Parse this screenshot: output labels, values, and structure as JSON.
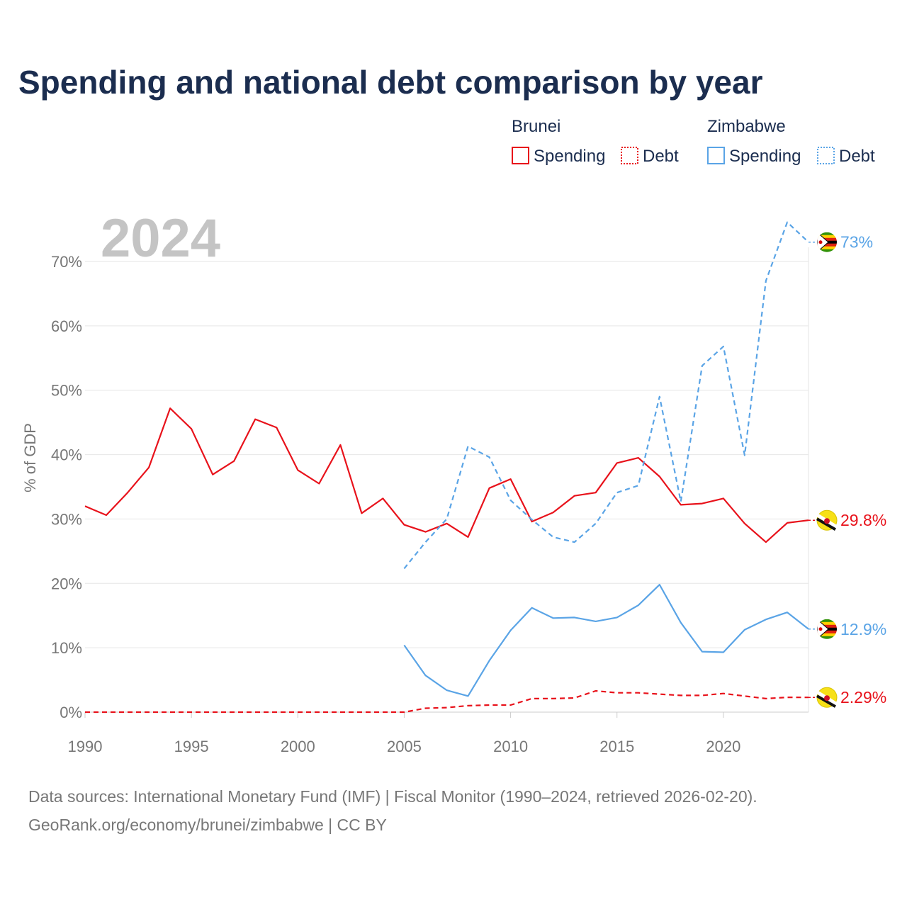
{
  "title": "Spending and national debt comparison by year",
  "year_watermark": "2024",
  "legend": {
    "countries": [
      {
        "name": "Brunei",
        "color": "#e8121b",
        "items": [
          "Spending",
          "Debt"
        ]
      },
      {
        "name": "Zimbabwe",
        "color": "#5aa4e6",
        "items": [
          "Spending",
          "Debt"
        ]
      }
    ]
  },
  "source_lines": [
    "Data sources: International Monetary Fund (IMF) | Fiscal Monitor (1990–2024, retrieved 2026-02-20).",
    "GeoRank.org/economy/brunei/zimbabwe | CC BY"
  ],
  "chart_data": {
    "type": "line",
    "title": "Spending and national debt comparison by year",
    "xlabel": "",
    "ylabel": "% of GDP",
    "xlim": [
      1990,
      2024
    ],
    "ylim": [
      0,
      75
    ],
    "x_ticks": [
      1990,
      1995,
      2000,
      2005,
      2010,
      2015,
      2020
    ],
    "y_ticks": [
      0,
      10,
      20,
      30,
      40,
      50,
      60,
      70
    ],
    "y_tick_labels": [
      "0%",
      "10%",
      "20%",
      "30%",
      "40%",
      "50%",
      "60%",
      "70%"
    ],
    "grid": true,
    "legend_position": "top-right",
    "series": [
      {
        "name": "Brunei Spending",
        "country": "Brunei",
        "kind": "Spending",
        "color": "#e8121b",
        "dash": false,
        "end_label": "29.8%",
        "x": [
          1990,
          1991,
          1992,
          1993,
          1994,
          1995,
          1996,
          1997,
          1998,
          1999,
          2000,
          2001,
          2002,
          2003,
          2004,
          2005,
          2006,
          2007,
          2008,
          2009,
          2010,
          2011,
          2012,
          2013,
          2014,
          2015,
          2016,
          2017,
          2018,
          2019,
          2020,
          2021,
          2022,
          2023,
          2024
        ],
        "values": [
          32.0,
          30.6,
          34.1,
          38.0,
          47.2,
          44.0,
          36.9,
          39.0,
          45.5,
          44.2,
          37.6,
          35.5,
          41.5,
          30.9,
          33.2,
          29.1,
          28.0,
          29.3,
          27.2,
          34.8,
          36.2,
          29.6,
          31.0,
          33.6,
          34.1,
          38.7,
          39.5,
          36.6,
          32.2,
          32.4,
          33.2,
          29.3,
          26.4,
          29.4,
          29.8
        ]
      },
      {
        "name": "Brunei Debt",
        "country": "Brunei",
        "kind": "Debt",
        "color": "#e8121b",
        "dash": true,
        "end_label": "2.29%",
        "x": [
          1990,
          1991,
          1992,
          1993,
          1994,
          1995,
          1996,
          1997,
          1998,
          1999,
          2000,
          2001,
          2002,
          2003,
          2004,
          2005,
          2006,
          2007,
          2008,
          2009,
          2010,
          2011,
          2012,
          2013,
          2014,
          2015,
          2016,
          2017,
          2018,
          2019,
          2020,
          2021,
          2022,
          2023,
          2024
        ],
        "values": [
          0,
          0,
          0,
          0,
          0,
          0,
          0,
          0,
          0,
          0,
          0,
          0,
          0,
          0,
          0,
          0,
          0.6,
          0.7,
          1.0,
          1.1,
          1.1,
          2.1,
          2.1,
          2.2,
          3.3,
          3.0,
          3.0,
          2.8,
          2.6,
          2.6,
          2.9,
          2.5,
          2.1,
          2.3,
          2.29
        ]
      },
      {
        "name": "Zimbabwe Spending",
        "country": "Zimbabwe",
        "kind": "Spending",
        "color": "#5aa4e6",
        "dash": false,
        "end_label": "12.9%",
        "x": [
          2005,
          2006,
          2007,
          2008,
          2009,
          2010,
          2011,
          2012,
          2013,
          2014,
          2015,
          2016,
          2017,
          2018,
          2019,
          2020,
          2021,
          2022,
          2023,
          2024
        ],
        "values": [
          10.4,
          5.7,
          3.4,
          2.5,
          8.0,
          12.7,
          16.2,
          14.6,
          14.7,
          14.1,
          14.7,
          16.6,
          19.8,
          13.9,
          9.4,
          9.3,
          12.8,
          14.4,
          15.5,
          12.9
        ]
      },
      {
        "name": "Zimbabwe Debt",
        "country": "Zimbabwe",
        "kind": "Debt",
        "color": "#5aa4e6",
        "dash": true,
        "end_label": "73%",
        "x": [
          2005,
          2006,
          2007,
          2008,
          2009,
          2010,
          2011,
          2012,
          2013,
          2014,
          2015,
          2016,
          2017,
          2018,
          2019,
          2020,
          2021,
          2022,
          2023,
          2024
        ],
        "values": [
          22.3,
          26.4,
          30.0,
          41.3,
          39.6,
          32.9,
          29.9,
          27.2,
          26.4,
          29.3,
          34.1,
          35.2,
          49.0,
          32.7,
          53.8,
          56.8,
          39.9,
          67.0,
          76.1,
          73.0
        ]
      }
    ]
  }
}
